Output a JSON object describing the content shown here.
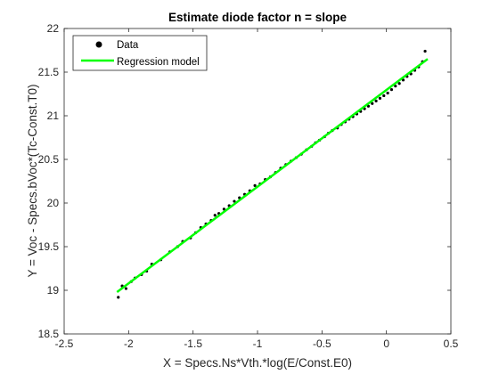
{
  "figure": {
    "background": "#ffffff",
    "axes_color": "#262626"
  },
  "chart_data": {
    "type": "scatter",
    "title": "Estimate diode factor n = slope",
    "xlabel": "X = Specs.Ns*Vth.*log(E/Const.E0)",
    "ylabel": "Y = Voc - Specs.bVoc*(Tc-Const.T0)",
    "xlim": [
      -2.5,
      0.5
    ],
    "ylim": [
      18.5,
      22
    ],
    "xticks": [
      -2.5,
      -2,
      -1.5,
      -1,
      -0.5,
      0,
      0.5
    ],
    "xtick_labels": [
      "-2.5",
      "-2",
      "-1.5",
      "-1",
      "-0.5",
      "0",
      "0.5"
    ],
    "yticks": [
      18.5,
      19,
      19.5,
      20,
      20.5,
      21,
      21.5,
      22
    ],
    "ytick_labels": [
      "18.5",
      "19",
      "19.5",
      "20",
      "20.5",
      "21",
      "21.5",
      "22"
    ],
    "grid": false,
    "legend_position": "top-left",
    "series": [
      {
        "name": "Data",
        "kind": "scatter",
        "color": "#000000",
        "marker": "dot",
        "x": [
          -2.08,
          -2.05,
          -2.02,
          -1.98,
          -1.95,
          -1.9,
          -1.86,
          -1.82,
          -1.75,
          -1.68,
          -1.62,
          -1.58,
          -1.52,
          -1.48,
          -1.44,
          -1.4,
          -1.36,
          -1.33,
          -1.3,
          -1.26,
          -1.22,
          -1.18,
          -1.14,
          -1.1,
          -1.06,
          -1.02,
          -0.98,
          -0.94,
          -0.9,
          -0.86,
          -0.82,
          -0.78,
          -0.74,
          -0.7,
          -0.66,
          -0.62,
          -0.58,
          -0.55,
          -0.52,
          -0.48,
          -0.45,
          -0.42,
          -0.38,
          -0.35,
          -0.32,
          -0.29,
          -0.26,
          -0.23,
          -0.2,
          -0.17,
          -0.14,
          -0.11,
          -0.08,
          -0.05,
          -0.02,
          0.01,
          0.04,
          0.07,
          0.1,
          0.13,
          0.16,
          0.19,
          0.22,
          0.25,
          0.28,
          0.3
        ],
        "y": [
          18.92,
          19.05,
          19.02,
          19.1,
          19.14,
          19.18,
          19.22,
          19.3,
          19.35,
          19.44,
          19.5,
          19.56,
          19.6,
          19.66,
          19.72,
          19.76,
          19.8,
          19.86,
          19.88,
          19.93,
          19.97,
          20.02,
          20.06,
          20.1,
          20.14,
          20.2,
          20.22,
          20.27,
          20.3,
          20.35,
          20.4,
          20.44,
          20.48,
          20.52,
          20.56,
          20.61,
          20.65,
          20.69,
          20.72,
          20.76,
          20.8,
          20.83,
          20.86,
          20.9,
          20.93,
          20.96,
          20.99,
          21.02,
          21.05,
          21.08,
          21.11,
          21.14,
          21.17,
          21.2,
          21.23,
          21.26,
          21.3,
          21.34,
          21.37,
          21.41,
          21.45,
          21.48,
          21.52,
          21.56,
          21.62,
          21.74
        ]
      },
      {
        "name": "Regression model",
        "kind": "line",
        "color": "#00ff00",
        "x": [
          -2.09,
          0.32
        ],
        "y": [
          18.98,
          21.65
        ]
      }
    ]
  }
}
